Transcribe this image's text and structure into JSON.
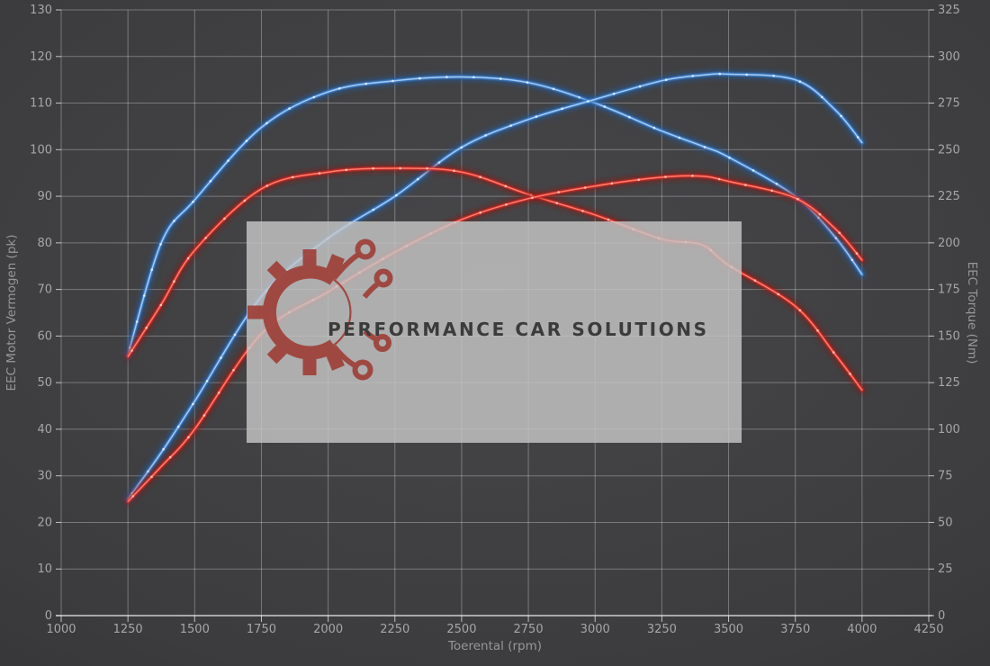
{
  "watermark": {
    "text": "PERFORMANCE CAR SOLUTIONS",
    "logo": "gear-circuit-icon",
    "logo_color": "#9e3b33"
  },
  "colors": {
    "background": "#3c3c3e",
    "grid": "rgba(255,255,255,0.30)",
    "axis_line": "rgba(240,240,240,0.75)",
    "tick_label": "#a6a6a6",
    "axis_title": "#979797",
    "blue_main": "#3f86d8",
    "blue_core": "#aacdf2",
    "blue_glow": "#1f5fae",
    "blue_dot": "#e4f0fc",
    "red_main": "#da2920",
    "red_core": "#ff8276",
    "red_glow": "#8f1410",
    "red_dot": "#ffc9c2"
  },
  "chart_data": {
    "type": "line",
    "title": "",
    "xlabel": "Toerental (rpm)",
    "ylabel_left": "EEC Motor Vermogen (pk)",
    "ylabel_right": "EEC Torque (Nm)",
    "xlim": [
      1000,
      4250
    ],
    "ylim_left": [
      0,
      130
    ],
    "ylim_right": [
      0,
      325
    ],
    "x_tick_step": 250,
    "y_left_tick_step": 10,
    "y_right_tick_step": 25,
    "grid": true,
    "legend": false,
    "x": [
      1250,
      1375,
      1500,
      1750,
      2000,
      2250,
      2500,
      2750,
      3000,
      3250,
      3400,
      3500,
      3750,
      3900,
      4000
    ],
    "series": [
      {
        "name": "blue-torque-nm",
        "axis": "right",
        "color": "blue",
        "values": [
          140,
          200,
          223,
          262,
          281,
          287,
          289,
          286,
          275,
          260,
          252,
          246,
          225,
          203,
          183
        ]
      },
      {
        "name": "blue-power-pk",
        "axis": "left",
        "color": "blue",
        "values": [
          25,
          35,
          46,
          68.5,
          81,
          90,
          100.5,
          106.5,
          110.8,
          114.8,
          116,
          116.2,
          115,
          108.5,
          101.5
        ]
      },
      {
        "name": "red-torque-nm",
        "axis": "right",
        "color": "red",
        "values": [
          139,
          167,
          196,
          229,
          238,
          240,
          238,
          226,
          215,
          202,
          199,
          188,
          166,
          140,
          121
        ]
      },
      {
        "name": "red-power-pk",
        "axis": "left",
        "color": "red",
        "values": [
          24.5,
          32,
          40,
          60.5,
          69.5,
          78,
          85,
          89.5,
          92.2,
          94.1,
          94.3,
          93.2,
          89.6,
          83,
          76.3
        ]
      }
    ]
  }
}
